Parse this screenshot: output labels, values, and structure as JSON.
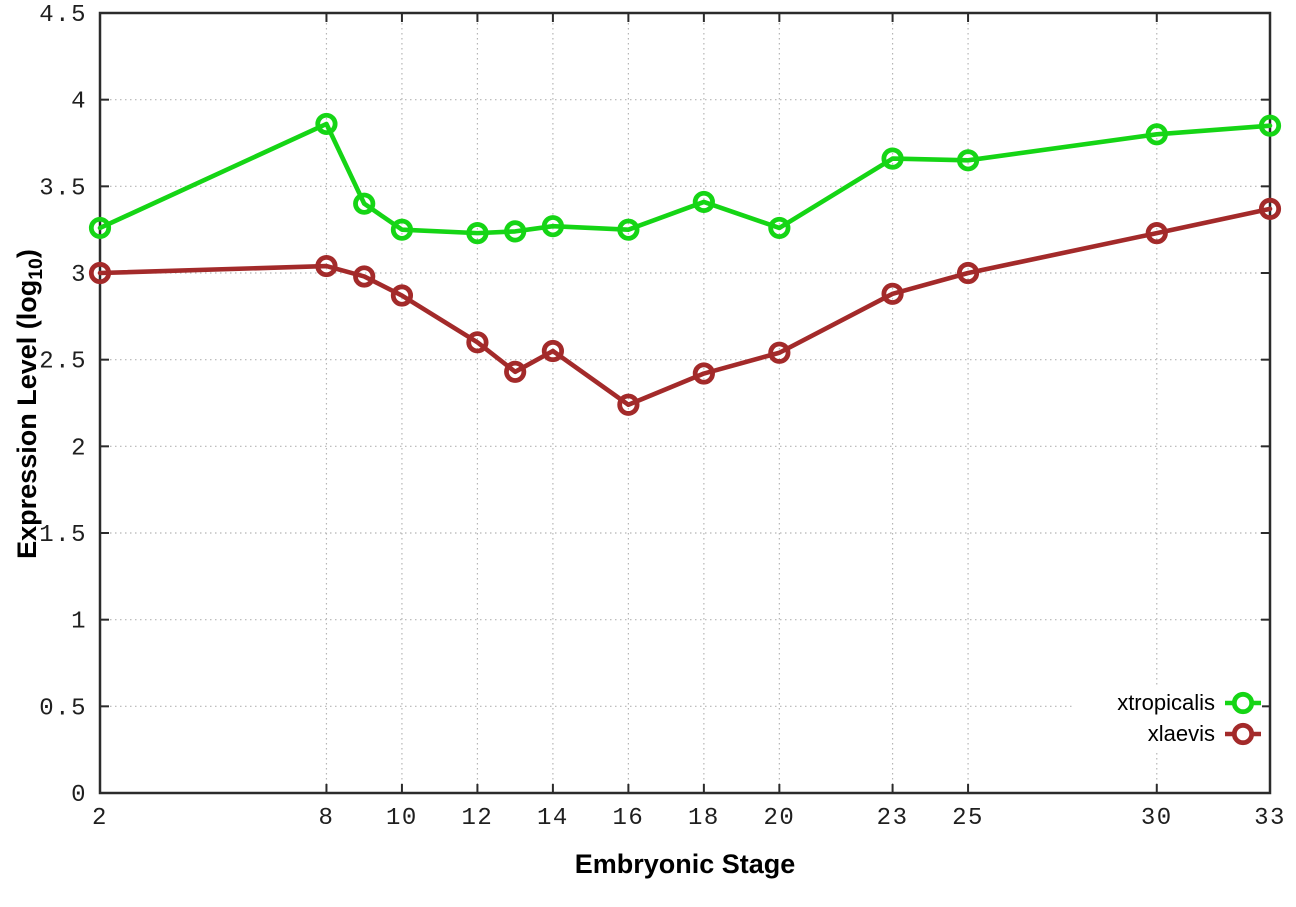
{
  "figure": {
    "background": "#ffffff",
    "border_color": "#2b2b2b",
    "grid_color": "#b5b5b5",
    "tick_label_color": "#1f1f1f"
  },
  "chart_data": {
    "type": "line",
    "xlabel": "Embryonic Stage",
    "ylabel": "Expression Level (log10)",
    "ylabel_parts": {
      "base": "Expression Level (log",
      "sub": "10",
      "close": ")"
    },
    "xlim": [
      2,
      33
    ],
    "ylim": [
      0,
      4.5
    ],
    "grid": true,
    "legend_position": "bottom-right-inside",
    "x_ticks": [
      2,
      8,
      10,
      12,
      14,
      16,
      18,
      20,
      23,
      25,
      30,
      33
    ],
    "y_ticks": [
      0,
      0.5,
      1,
      1.5,
      2,
      2.5,
      3,
      3.5,
      4,
      4.5
    ],
    "y_tick_labels": [
      "0",
      "0.5",
      "1",
      "1.5",
      "2",
      "2.5",
      "3",
      "3.5",
      "4",
      "4.5"
    ],
    "x": [
      2,
      8,
      9,
      10,
      12,
      13,
      14,
      16,
      18,
      20,
      23,
      25,
      30,
      33
    ],
    "series": [
      {
        "name": "xtropicalis",
        "color": "#15d515",
        "marker": "open-circle",
        "values": [
          3.26,
          3.86,
          3.4,
          3.25,
          3.23,
          3.24,
          3.27,
          3.25,
          3.41,
          3.26,
          3.66,
          3.65,
          3.8,
          3.85
        ]
      },
      {
        "name": "xlaevis",
        "color": "#a32a2a",
        "marker": "open-circle",
        "values": [
          3.0,
          3.04,
          2.98,
          2.87,
          2.6,
          2.43,
          2.55,
          2.24,
          2.42,
          2.54,
          2.88,
          3.0,
          3.23,
          3.37
        ]
      }
    ]
  }
}
